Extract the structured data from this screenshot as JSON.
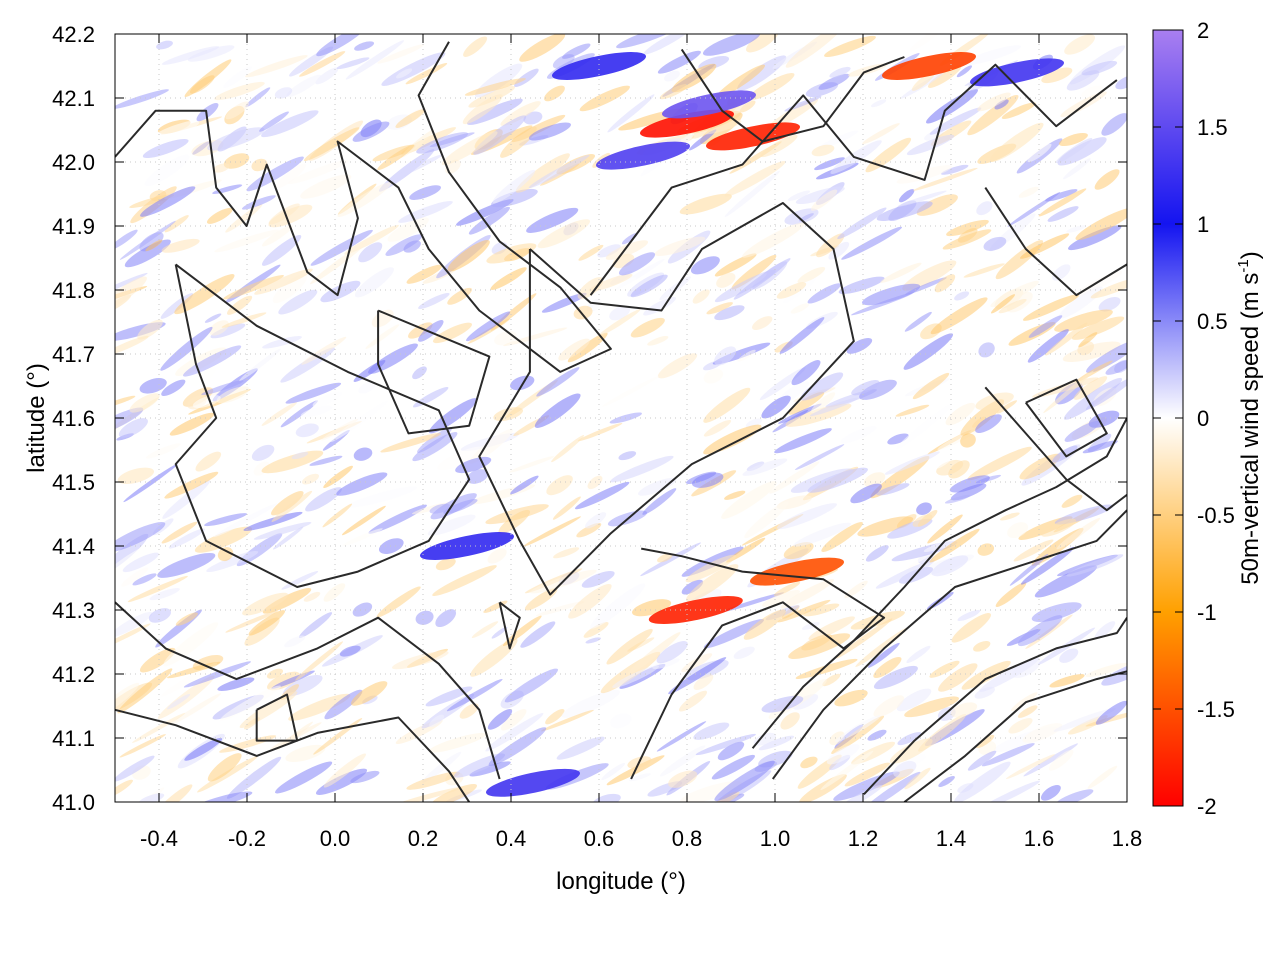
{
  "chart_data": {
    "type": "heatmap",
    "title": "",
    "xlabel": "longitude (°)",
    "ylabel": "latitude (°)",
    "xlim": [
      -0.5,
      1.8
    ],
    "ylim": [
      41.0,
      42.2
    ],
    "x_ticks": [
      -0.4,
      -0.2,
      0.0,
      0.2,
      0.4,
      0.6,
      0.8,
      1.0,
      1.2,
      1.4,
      1.6,
      1.8
    ],
    "x_tick_labels": [
      "-0.4",
      "-0.2",
      "0.0",
      "0.2",
      "0.4",
      "0.6",
      "0.8",
      "1.0",
      "1.2",
      "1.4",
      "1.6",
      "1.8"
    ],
    "y_ticks": [
      41.0,
      41.1,
      41.2,
      41.3,
      41.4,
      41.5,
      41.6,
      41.7,
      41.8,
      41.9,
      42.0,
      42.1,
      42.2
    ],
    "y_tick_labels": [
      "41.0",
      "41.1",
      "41.2",
      "41.3",
      "41.4",
      "41.5",
      "41.6",
      "41.7",
      "41.8",
      "41.9",
      "42.0",
      "42.1",
      "42.2"
    ],
    "grid": true,
    "colorbar": {
      "label_main": "50m-vertical wind speed (m s",
      "label_sup": "-1",
      "label_close": ")",
      "range": [
        -2,
        2
      ],
      "ticks": [
        2,
        1.5,
        1,
        0.5,
        0,
        -0.5,
        -1,
        -1.5,
        -2
      ],
      "tick_labels": [
        "2",
        "1.5",
        "1",
        "0.5",
        "0",
        "-0.5",
        "-1",
        "-1.5",
        "-2"
      ],
      "stops": [
        {
          "value": 2,
          "color": "#a97ff0"
        },
        {
          "value": 1,
          "color": "#1414f0"
        },
        {
          "value": 0,
          "color": "#ffffff"
        },
        {
          "value": -1,
          "color": "#ffa000"
        },
        {
          "value": -2,
          "color": "#ff0000"
        }
      ]
    },
    "strong_features": [
      {
        "lon": 0.8,
        "lat": 42.06,
        "value": -1.9
      },
      {
        "lon": 0.95,
        "lat": 42.04,
        "value": -1.8
      },
      {
        "lon": 1.35,
        "lat": 42.15,
        "value": -1.6
      },
      {
        "lon": 0.82,
        "lat": 41.3,
        "value": -1.8
      },
      {
        "lon": 1.05,
        "lat": 41.36,
        "value": -1.5
      },
      {
        "lon": 0.85,
        "lat": 42.09,
        "value": 1.6
      },
      {
        "lon": 0.7,
        "lat": 42.01,
        "value": 1.4
      },
      {
        "lon": 0.3,
        "lat": 41.4,
        "value": 1.2
      },
      {
        "lon": 0.45,
        "lat": 41.03,
        "value": 1.3
      },
      {
        "lon": 1.55,
        "lat": 42.14,
        "value": 1.3
      },
      {
        "lon": 0.6,
        "lat": 42.15,
        "value": 1.2
      }
    ]
  }
}
